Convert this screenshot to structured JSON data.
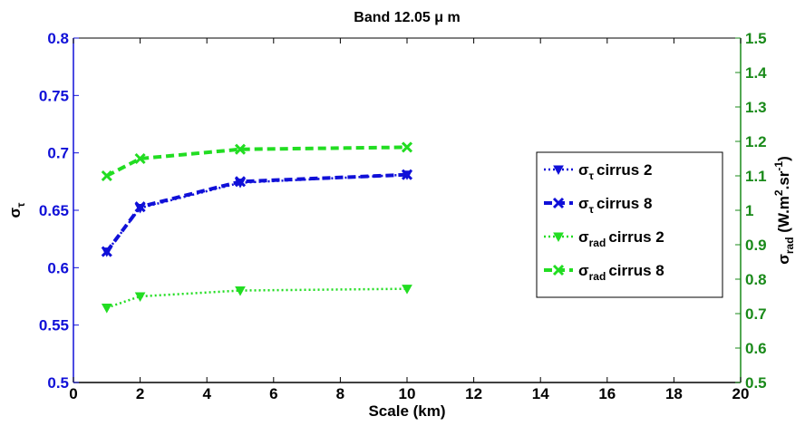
{
  "colors": {
    "blue": "#1010d8",
    "green": "#22dd22",
    "green_axis": "#1a8a1a",
    "axis": "#000000"
  },
  "chart_data": {
    "type": "line",
    "title": "Band 12.05 μ m",
    "xlabel": "Scale (km)",
    "ylabel_left": {
      "symbol": "σ",
      "sub": "τ"
    },
    "ylabel_right": {
      "symbol": "σ",
      "sub": "rad",
      "unit_pre": " (W.m",
      "sup1": "2",
      "unit_mid": ".sr",
      "sup2": "-1",
      "unit_post": ")"
    },
    "xlim": [
      0,
      20
    ],
    "ylim_left": [
      0.5,
      0.8
    ],
    "ylim_right": [
      0.5,
      1.5
    ],
    "x_ticks": [
      "0",
      "2",
      "4",
      "6",
      "8",
      "10",
      "12",
      "14",
      "16",
      "18",
      "20"
    ],
    "y_left_ticks": [
      "0.5",
      "0.55",
      "0.6",
      "0.65",
      "0.7",
      "0.75",
      "0.8"
    ],
    "y_right_ticks": [
      "0.5",
      "0.6",
      "0.7",
      "0.8",
      "0.9",
      "1",
      "1.1",
      "1.2",
      "1.3",
      "1.4",
      "1.5"
    ],
    "grid": false,
    "legend_position": "right",
    "series": [
      {
        "name": "cirrus 2",
        "legend_symbol": "σ",
        "legend_sub": "τ",
        "axis": "left",
        "color": "blue",
        "marker": "triangle-down",
        "style": "dotted",
        "x": [
          1,
          2,
          5,
          10
        ],
        "y": [
          0.614,
          0.652,
          0.674,
          0.681
        ]
      },
      {
        "name": "cirrus 8",
        "legend_symbol": "σ",
        "legend_sub": "τ",
        "axis": "left",
        "color": "blue",
        "marker": "x",
        "style": "dashed",
        "x": [
          1,
          2,
          5,
          10
        ],
        "y": [
          0.614,
          0.653,
          0.675,
          0.681
        ]
      },
      {
        "name": "cirrus 2",
        "legend_symbol": "σ",
        "legend_sub": "rad",
        "axis": "right",
        "color": "green",
        "marker": "triangle-down",
        "style": "dotted",
        "x": [
          1,
          2,
          5,
          10
        ],
        "y": [
          0.717,
          0.75,
          0.767,
          0.772
        ]
      },
      {
        "name": "cirrus 8",
        "legend_symbol": "σ",
        "legend_sub": "rad",
        "axis": "right",
        "color": "green",
        "marker": "x",
        "style": "dashed",
        "x": [
          1,
          2,
          5,
          10
        ],
        "y": [
          1.1,
          1.15,
          1.177,
          1.183
        ]
      }
    ]
  }
}
